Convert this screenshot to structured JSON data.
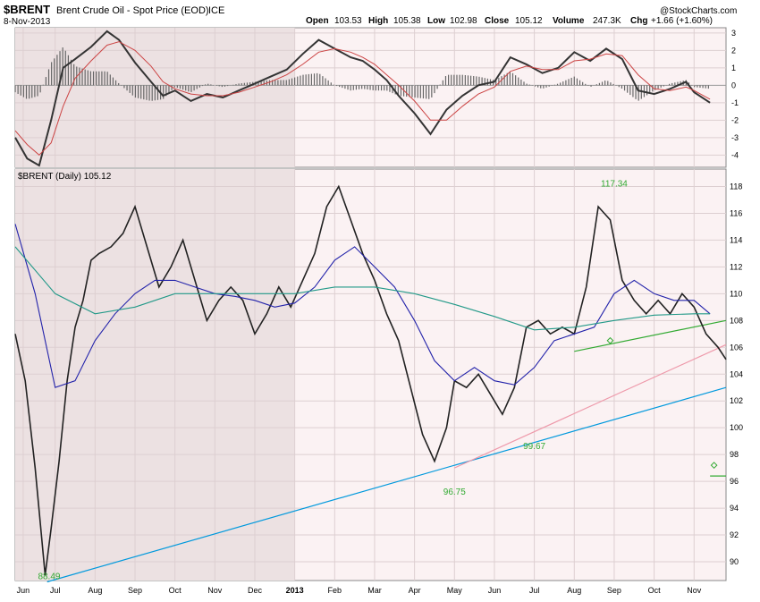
{
  "header": {
    "ticker": "$BRENT",
    "name": "Brent Crude Oil - Spot Price (EOD)",
    "exchange": "ICE",
    "date": "8-Nov-2013",
    "watermark": "@StockCharts.com",
    "quote": {
      "open_label": "Open",
      "open": "103.53",
      "high_label": "High",
      "high": "105.38",
      "low_label": "Low",
      "low": "102.98",
      "close_label": "Close",
      "close": "105.12",
      "volume_label": "Volume",
      "volume": "247.3K",
      "chg_label": "Chg",
      "chg": "+1.66 (+1.60%)"
    }
  },
  "price_panel_label": "$BRENT (Daily) 105.12",
  "chart_data": [
    {
      "id": "macd",
      "type": "line",
      "ylim": [
        -4.7,
        3.3
      ],
      "yticks": [
        3,
        2,
        1,
        0,
        -1,
        -2,
        -3,
        -4
      ],
      "shaded_until_month_index": 7,
      "series": [
        {
          "role": "macd",
          "color": "#333333",
          "x": [
            0,
            0.3,
            0.6,
            0.9,
            1.2,
            1.5,
            1.9,
            2.3,
            2.6,
            3,
            3.4,
            3.7,
            4,
            4.4,
            4.8,
            5.2,
            5.6,
            6,
            6.4,
            6.8,
            7.2,
            7.6,
            8,
            8.4,
            8.7,
            9,
            9.3,
            9.6,
            10,
            10.4,
            10.8,
            11.2,
            11.6,
            12,
            12.4,
            12.8,
            13.2,
            13.6,
            14,
            14.4,
            14.8,
            15.2,
            15.6,
            16,
            16.4,
            16.8,
            17,
            17.4
          ],
          "values": [
            -3,
            -4.2,
            -4.6,
            -2,
            1,
            1.5,
            2.2,
            3.1,
            2.6,
            1.3,
            0.2,
            -0.6,
            -0.3,
            -0.9,
            -0.5,
            -0.7,
            -0.3,
            0.1,
            0.5,
            0.9,
            1.8,
            2.6,
            2.1,
            1.6,
            1.4,
            0.9,
            0.3,
            -0.6,
            -1.6,
            -2.8,
            -1.4,
            -0.6,
            0,
            0.2,
            1.6,
            1.2,
            0.7,
            1.0,
            1.9,
            1.4,
            2.1,
            1.5,
            -0.3,
            -0.5,
            -0.2,
            0.2,
            -0.4,
            -1.0
          ]
        },
        {
          "role": "signal",
          "color": "#cc4444",
          "x": [
            0,
            0.3,
            0.6,
            0.9,
            1.2,
            1.5,
            1.9,
            2.3,
            2.6,
            3,
            3.4,
            3.7,
            4,
            4.4,
            4.8,
            5.2,
            5.6,
            6,
            6.4,
            6.8,
            7.2,
            7.6,
            8,
            8.4,
            8.7,
            9,
            9.3,
            9.6,
            10,
            10.4,
            10.8,
            11.2,
            11.6,
            12,
            12.4,
            12.8,
            13.2,
            13.6,
            14,
            14.4,
            14.8,
            15.2,
            15.6,
            16,
            16.4,
            16.8,
            17,
            17.4
          ],
          "values": [
            -2.6,
            -3.4,
            -4.0,
            -3.3,
            -1.2,
            0.4,
            1.4,
            2.3,
            2.5,
            2.0,
            1.1,
            0.2,
            -0.2,
            -0.5,
            -0.6,
            -0.6,
            -0.4,
            -0.1,
            0.2,
            0.6,
            1.2,
            1.9,
            2.1,
            1.9,
            1.6,
            1.2,
            0.6,
            0,
            -0.9,
            -2.0,
            -2.0,
            -1.2,
            -0.5,
            -0.1,
            0.8,
            1.1,
            0.9,
            0.9,
            1.4,
            1.5,
            1.8,
            1.7,
            0.6,
            -0.2,
            -0.3,
            -0.1,
            -0.3,
            -0.8
          ]
        }
      ]
    },
    {
      "id": "price",
      "type": "line",
      "ylim": [
        88.6,
        119.3
      ],
      "yticks": [
        118,
        116,
        114,
        112,
        110,
        108,
        106,
        104,
        102,
        100,
        98,
        96,
        94,
        92,
        90
      ],
      "x_tick_labels": [
        "Jun",
        "Jul",
        "Aug",
        "Sep",
        "Oct",
        "Nov",
        "Dec",
        "2013",
        "Feb",
        "Mar",
        "Apr",
        "May",
        "Jun",
        "Jul",
        "Aug",
        "Sep",
        "Oct",
        "Nov"
      ],
      "x_tick_positions": [
        0.2,
        1.0,
        2.0,
        3.0,
        4.0,
        5.0,
        6.0,
        7.0,
        8.0,
        9.0,
        10.0,
        11.0,
        12.0,
        13.0,
        14.0,
        15.0,
        16.0,
        17.0
      ],
      "shaded_until_month_index": 7,
      "series": [
        {
          "role": "price",
          "color": "#222222",
          "x": [
            0,
            0.25,
            0.5,
            0.75,
            0.9,
            1.1,
            1.3,
            1.5,
            1.7,
            1.9,
            2.1,
            2.4,
            2.7,
            3,
            3.3,
            3.6,
            3.9,
            4.2,
            4.5,
            4.8,
            5.1,
            5.4,
            5.7,
            6,
            6.3,
            6.6,
            6.9,
            7.2,
            7.5,
            7.8,
            8.1,
            8.4,
            8.7,
            9,
            9.3,
            9.6,
            9.9,
            10.2,
            10.5,
            10.8,
            11.0,
            11.3,
            11.6,
            11.9,
            12.2,
            12.5,
            12.8,
            13.1,
            13.4,
            13.7,
            14,
            14.3,
            14.6,
            14.9,
            15.2,
            15.5,
            15.8,
            16.1,
            16.4,
            16.7,
            17,
            17.3,
            17.6,
            17.8
          ],
          "values": [
            107.0,
            103.5,
            97.0,
            89.0,
            92.5,
            97.5,
            103.5,
            107.5,
            109.5,
            112.5,
            113.0,
            113.5,
            114.5,
            116.5,
            113.5,
            110.5,
            112.0,
            114.0,
            111.0,
            108.0,
            109.5,
            110.5,
            109.5,
            107.0,
            108.5,
            110.5,
            109.0,
            111.0,
            113.0,
            116.5,
            118.0,
            115.5,
            113.0,
            111.0,
            108.5,
            106.5,
            103.0,
            99.5,
            97.5,
            100.0,
            103.5,
            103.0,
            104.0,
            102.5,
            101.0,
            103.0,
            107.5,
            108.0,
            107.0,
            107.5,
            107.0,
            110.5,
            116.5,
            115.5,
            111.0,
            109.5,
            108.5,
            109.5,
            108.5,
            110.0,
            109.0,
            107.0,
            106.0,
            105.1
          ]
        },
        {
          "role": "ma50",
          "color": "#2222aa",
          "x": [
            0,
            0.5,
            1.0,
            1.5,
            2.0,
            2.5,
            3.0,
            3.5,
            4.0,
            4.5,
            5.0,
            5.5,
            6.0,
            6.5,
            7.0,
            7.5,
            8.0,
            8.5,
            9.0,
            9.5,
            10.0,
            10.5,
            11.0,
            11.5,
            12.0,
            12.5,
            13.0,
            13.5,
            14.0,
            14.5,
            15.0,
            15.5,
            16.0,
            16.5,
            17.0,
            17.4
          ],
          "values": [
            115.2,
            110.0,
            103.0,
            103.5,
            106.5,
            108.5,
            110.0,
            111.0,
            111.0,
            110.5,
            110.0,
            109.8,
            109.5,
            109.0,
            109.3,
            110.5,
            112.5,
            113.5,
            112.0,
            110.5,
            108.0,
            105.0,
            103.5,
            104.5,
            103.5,
            103.2,
            104.5,
            106.5,
            107.0,
            107.5,
            110.0,
            111.0,
            110.0,
            109.5,
            109.5,
            108.5
          ]
        },
        {
          "role": "ma200",
          "color": "#229988",
          "x": [
            0,
            1.0,
            2.0,
            3.0,
            4.0,
            5.0,
            6.0,
            7.0,
            8.0,
            9.0,
            10.0,
            11.0,
            12.0,
            13.0,
            14.0,
            15.0,
            16.0,
            17.0,
            17.4
          ],
          "values": [
            113.5,
            110.0,
            108.5,
            109.0,
            110.0,
            110.0,
            110.0,
            110.0,
            110.5,
            110.5,
            110.0,
            109.2,
            108.3,
            107.3,
            107.5,
            108.0,
            108.4,
            108.5,
            108.5
          ]
        }
      ],
      "annotations": [
        {
          "text": "117.34",
          "x": 15.0,
          "y": 118.0
        },
        {
          "text": "99.67",
          "x": 13.0,
          "y": 98.4
        },
        {
          "text": "96.75",
          "x": 11.0,
          "y": 95.0
        },
        {
          "text": "88.49",
          "x": 0.85,
          "y": 88.7
        }
      ],
      "trendlines": [
        {
          "color": "#0099dd",
          "from": [
            0.8,
            88.5
          ],
          "to": [
            17.8,
            103.0
          ]
        },
        {
          "color": "#ee99aa",
          "from": [
            11.0,
            97.0
          ],
          "to": [
            17.8,
            106.2
          ]
        },
        {
          "color": "#33aa33",
          "from": [
            14.0,
            105.7
          ],
          "to": [
            17.8,
            108.0
          ]
        },
        {
          "color": "#33aa33",
          "from": [
            17.4,
            96.4
          ],
          "to": [
            17.8,
            96.4
          ]
        }
      ]
    }
  ]
}
